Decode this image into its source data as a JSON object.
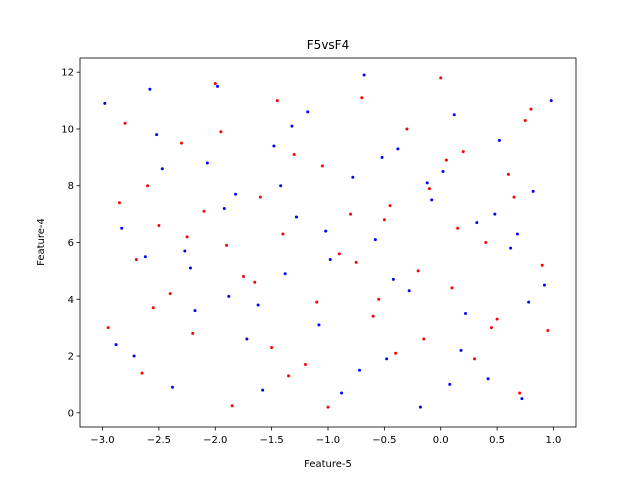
{
  "chart_data": {
    "type": "scatter",
    "title": "F5vsF4",
    "xlabel": "Feature-5",
    "ylabel": "Feature-4",
    "xlim": [
      -3.2,
      1.2
    ],
    "ylim": [
      -0.5,
      12.5
    ],
    "xticks": [
      {
        "value": -3,
        "label": "−3.0"
      },
      {
        "value": -2.5,
        "label": "−2.5"
      },
      {
        "value": -2,
        "label": "−2.0"
      },
      {
        "value": -1.5,
        "label": "−1.5"
      },
      {
        "value": -1,
        "label": "−1.0"
      },
      {
        "value": -0.5,
        "label": "−0.5"
      },
      {
        "value": 0,
        "label": "0.0"
      },
      0.5,
      {
        "value": 1,
        "label": "1.0"
      }
    ],
    "yticks": [
      0,
      2,
      4,
      6,
      8,
      10,
      12
    ],
    "series": [
      {
        "color": "#ff0000",
        "x": [
          -2.95,
          -2.8,
          -2.7,
          -2.6,
          -2.5,
          -2.4,
          -2.3,
          -2.2,
          -2.1,
          -2.0,
          -1.9,
          -1.85,
          -1.75,
          -1.6,
          -1.5,
          -1.4,
          -1.3,
          -1.2,
          -1.1,
          -1.0,
          -0.9,
          -0.8,
          -0.7,
          -0.6,
          -0.5,
          -0.4,
          -0.3,
          -0.2,
          -0.1,
          0.0,
          0.1,
          0.2,
          0.3,
          0.4,
          0.5,
          0.6,
          0.7,
          0.8,
          0.9,
          0.95,
          -2.85,
          -2.55,
          -2.25,
          -1.95,
          -1.65,
          -1.35,
          -1.05,
          -0.75,
          -0.45,
          -0.15,
          0.15,
          0.45,
          0.75,
          -2.65,
          -1.45,
          -0.55,
          0.05,
          0.65
        ],
        "values": [
          3.0,
          10.2,
          5.4,
          8.0,
          6.6,
          4.2,
          9.5,
          2.8,
          7.1,
          11.6,
          5.9,
          0.25,
          4.8,
          7.6,
          2.3,
          6.3,
          9.1,
          1.7,
          3.9,
          0.2,
          5.6,
          7.0,
          11.1,
          3.4,
          6.8,
          2.1,
          10.0,
          5.0,
          7.9,
          11.8,
          4.4,
          9.2,
          1.9,
          6.0,
          3.3,
          8.4,
          0.7,
          10.7,
          5.2,
          2.9,
          7.4,
          3.7,
          6.2,
          9.9,
          4.6,
          1.3,
          8.7,
          5.3,
          7.3,
          2.6,
          6.5,
          3.0,
          10.3,
          1.4,
          11.0,
          4.0,
          8.9,
          7.6
        ]
      },
      {
        "color": "#0000ff",
        "x": [
          -2.98,
          -2.83,
          -2.72,
          -2.58,
          -2.47,
          -2.38,
          -2.27,
          -2.18,
          -2.07,
          -1.98,
          -1.88,
          -1.82,
          -1.72,
          -1.58,
          -1.48,
          -1.38,
          -1.28,
          -1.18,
          -1.08,
          -0.98,
          -0.88,
          -0.78,
          -0.68,
          -0.58,
          -0.48,
          -0.38,
          -0.28,
          -0.18,
          -0.08,
          0.02,
          0.12,
          0.22,
          0.32,
          0.42,
          0.52,
          0.62,
          0.72,
          0.82,
          0.92,
          0.98,
          -2.88,
          -2.52,
          -2.22,
          -1.92,
          -1.62,
          -1.32,
          -1.02,
          -0.72,
          -0.42,
          -0.12,
          0.18,
          0.48,
          0.78,
          -2.62,
          -1.42,
          -0.52,
          0.08,
          0.68
        ],
        "values": [
          10.9,
          6.5,
          2.0,
          11.4,
          8.6,
          0.9,
          5.7,
          3.6,
          8.8,
          11.5,
          4.1,
          7.7,
          2.6,
          0.8,
          9.4,
          4.9,
          6.9,
          10.6,
          3.1,
          5.4,
          0.7,
          8.3,
          11.9,
          6.1,
          1.9,
          9.3,
          4.3,
          0.2,
          7.5,
          8.5,
          10.5,
          3.5,
          6.7,
          1.2,
          9.6,
          5.8,
          0.5,
          7.8,
          4.5,
          11.0,
          2.4,
          9.8,
          5.1,
          7.2,
          3.8,
          10.1,
          6.4,
          1.5,
          4.7,
          8.1,
          2.2,
          7.0,
          3.9,
          5.5,
          8.0,
          9.0,
          1.0,
          6.3
        ]
      }
    ]
  }
}
